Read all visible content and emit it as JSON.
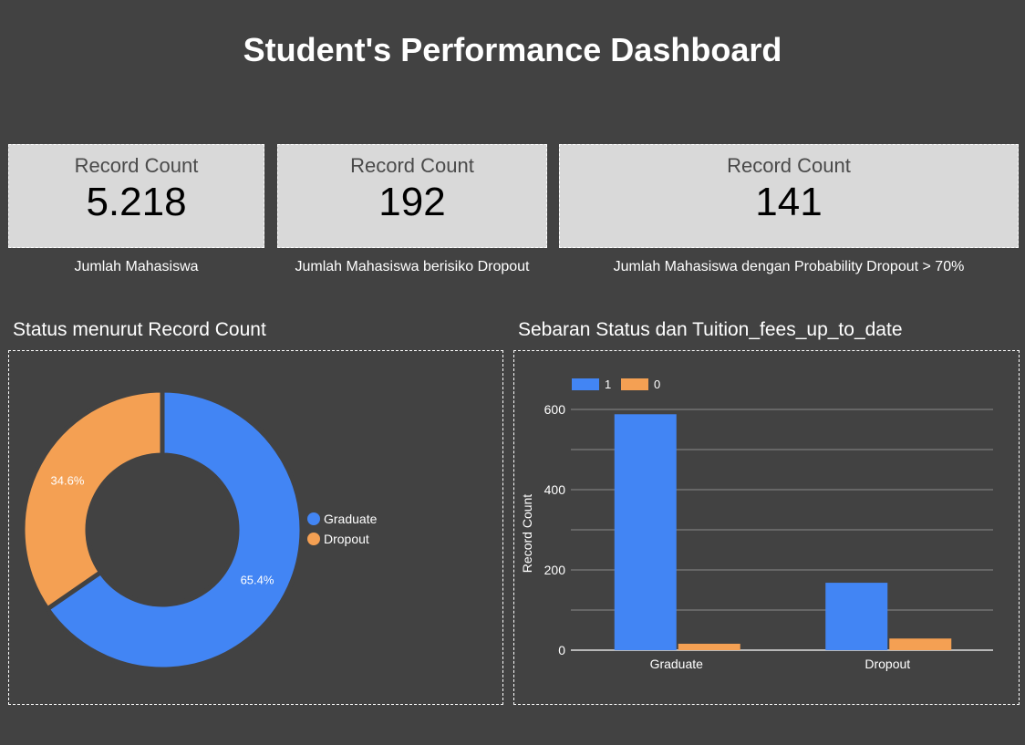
{
  "header": {
    "title": "Student's Performance Dashboard"
  },
  "scorecards": [
    {
      "label": "Record Count",
      "value": "5.218",
      "caption": "Jumlah Mahasiswa"
    },
    {
      "label": "Record Count",
      "value": "192",
      "caption": "Jumlah Mahasiswa berisiko Dropout"
    },
    {
      "label": "Record Count",
      "value": "141",
      "caption": "Jumlah Mahasiswa dengan Probability Dropout > 70%"
    }
  ],
  "panels": {
    "donut_title": "Status menurut Record Count",
    "bar_title": "Sebaran Status dan Tuition_fees_up_to_date"
  },
  "colors": {
    "blue": "#4285f4",
    "orange": "#f4a053",
    "background": "#424242",
    "card": "#d9d9d9"
  },
  "chart_data": [
    {
      "type": "pie",
      "title": "Status menurut Record Count",
      "donut": true,
      "categories": [
        "Graduate",
        "Dropout"
      ],
      "values": [
        65.4,
        34.6
      ],
      "labels": [
        "65.4%",
        "34.6%"
      ],
      "colors": [
        "#4285f4",
        "#f4a053"
      ],
      "legend": "right"
    },
    {
      "type": "bar",
      "title": "Sebaran Status dan Tuition_fees_up_to_date",
      "categories": [
        "Graduate",
        "Dropout"
      ],
      "series": [
        {
          "name": "1",
          "values": [
            588,
            168
          ],
          "color": "#4285f4"
        },
        {
          "name": "0",
          "values": [
            16,
            29
          ],
          "color": "#f4a053"
        }
      ],
      "xlabel": "",
      "ylabel": "Record Count",
      "ylim": [
        0,
        600
      ],
      "yticks": [
        "0",
        "200",
        "400",
        "600"
      ],
      "grid": true,
      "legend": "top-left"
    }
  ]
}
